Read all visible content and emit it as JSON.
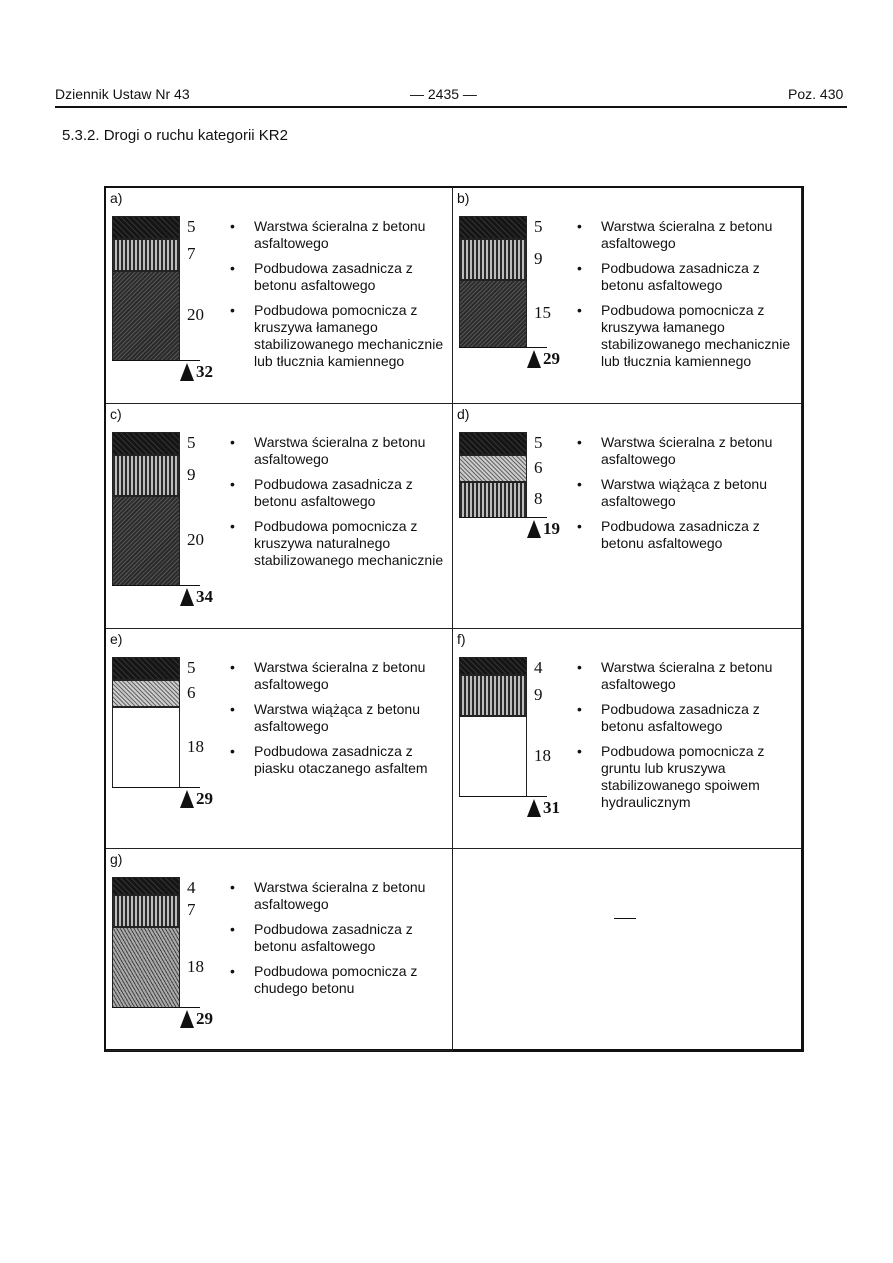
{
  "header": {
    "left": "Dziennik Ustaw Nr 43",
    "center": "— 2435 —",
    "right": "Poz. 430"
  },
  "section_title": "5.3.2. Drogi o ruchu kategorii KR2",
  "panels": [
    {
      "label": "a)",
      "layers": [
        {
          "thickness": 5,
          "pattern": "dark"
        },
        {
          "thickness": 7,
          "pattern": "vert"
        },
        {
          "thickness": 20,
          "pattern": "speck"
        }
      ],
      "total": 32,
      "items": [
        "Warstwa ścieralna z betonu asfaltowego",
        "Podbudowa zasadnicza z betonu asfaltowego",
        "Podbudowa pomocnicza z kruszywa łamanego stabilizowanego mechanicznie lub tłucznia kamiennego"
      ]
    },
    {
      "label": "b)",
      "layers": [
        {
          "thickness": 5,
          "pattern": "dark"
        },
        {
          "thickness": 9,
          "pattern": "vert"
        },
        {
          "thickness": 15,
          "pattern": "speck"
        }
      ],
      "total": 29,
      "items": [
        "Warstwa ścieralna z betonu asfaltowego",
        "Podbudowa zasadnicza z betonu asfaltowego",
        "Podbudowa pomocnicza z kruszywa łamanego stabilizowanego mechanicznie lub tłucznia kamiennego"
      ]
    },
    {
      "label": "c)",
      "layers": [
        {
          "thickness": 5,
          "pattern": "dark"
        },
        {
          "thickness": 9,
          "pattern": "vert"
        },
        {
          "thickness": 20,
          "pattern": "speck"
        }
      ],
      "total": 34,
      "items": [
        "Warstwa ścieralna z betonu asfaltowego",
        "Podbudowa zasadnicza z betonu asfaltowego",
        "Podbudowa pomocnicza z kruszywa naturalnego stabilizowanego mechanicznie"
      ]
    },
    {
      "label": "d)",
      "layers": [
        {
          "thickness": 5,
          "pattern": "dark"
        },
        {
          "thickness": 6,
          "pattern": "cross"
        },
        {
          "thickness": 8,
          "pattern": "vert"
        }
      ],
      "total": 19,
      "items": [
        "Warstwa ścieralna z betonu asfaltowego",
        "Warstwa wiążąca z betonu asfaltowego",
        "Podbudowa zasadnicza z betonu asfaltowego"
      ]
    },
    {
      "label": "e)",
      "layers": [
        {
          "thickness": 5,
          "pattern": "dark"
        },
        {
          "thickness": 6,
          "pattern": "cross"
        },
        {
          "thickness": 18,
          "pattern": "white"
        }
      ],
      "total": 29,
      "items": [
        "Warstwa ścieralna z betonu asfaltowego",
        "Warstwa wiążąca z betonu asfaltowego",
        "Podbudowa zasadnicza z piasku otaczanego asfaltem"
      ]
    },
    {
      "label": "f)",
      "layers": [
        {
          "thickness": 4,
          "pattern": "dark"
        },
        {
          "thickness": 9,
          "pattern": "vert"
        },
        {
          "thickness": 18,
          "pattern": "grid"
        }
      ],
      "total": 31,
      "items": [
        "Warstwa ścieralna z betonu asfaltowego",
        "Podbudowa zasadnicza z betonu asfaltowego",
        "Podbudowa pomocnicza z gruntu lub kruszywa stabilizowanego spoiwem hydraulicznym"
      ]
    },
    {
      "label": "g)",
      "layers": [
        {
          "thickness": 4,
          "pattern": "dark"
        },
        {
          "thickness": 7,
          "pattern": "vert"
        },
        {
          "thickness": 18,
          "pattern": "diag"
        }
      ],
      "total": 29,
      "items": [
        "Warstwa ścieralna z betonu asfaltowego",
        "Podbudowa zasadnicza z betonu asfaltowego",
        "Podbudowa pomocnicza z chudego betonu"
      ]
    }
  ],
  "empty_cell": "—"
}
